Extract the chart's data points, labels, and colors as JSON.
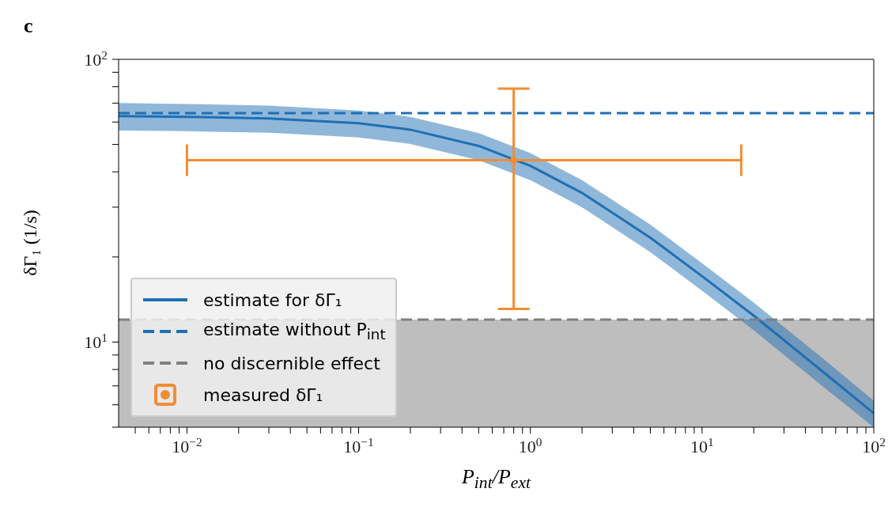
{
  "chart_data": {
    "type": "line",
    "title": "c",
    "xlabel": "P$_{int}$/P$_{ext}$",
    "ylabel": "δΓ₁ (1/s)",
    "log": "xy",
    "xlim": [
      0.004,
      100
    ],
    "ylim": [
      5,
      100
    ],
    "xticks": [
      {
        "value": 0.005,
        "label": null
      },
      {
        "value": 0.006,
        "label": null
      },
      {
        "value": 0.007,
        "label": null
      },
      {
        "value": 0.008,
        "label": null
      },
      {
        "value": 0.009,
        "label": null
      },
      {
        "value": 0.01,
        "label": "10$^{−2}$"
      },
      {
        "value": 0.02,
        "label": null
      },
      {
        "value": 0.03,
        "label": null
      },
      {
        "value": 0.04,
        "label": null
      },
      {
        "value": 0.05,
        "label": null
      },
      {
        "value": 0.06,
        "label": null
      },
      {
        "value": 0.07,
        "label": null
      },
      {
        "value": 0.08,
        "label": null
      },
      {
        "value": 0.09,
        "label": null
      },
      {
        "value": 0.1,
        "label": "10$^{−1}$"
      },
      {
        "value": 0.2,
        "label": null
      },
      {
        "value": 0.3,
        "label": null
      },
      {
        "value": 0.4,
        "label": null
      },
      {
        "value": 0.5,
        "label": null
      },
      {
        "value": 0.6,
        "label": null
      },
      {
        "value": 0.7,
        "label": null
      },
      {
        "value": 0.8,
        "label": null
      },
      {
        "value": 0.9,
        "label": null
      },
      {
        "value": 1,
        "label": "10$^{0}$"
      },
      {
        "value": 2,
        "label": null
      },
      {
        "value": 3,
        "label": null
      },
      {
        "value": 4,
        "label": null
      },
      {
        "value": 5,
        "label": null
      },
      {
        "value": 6,
        "label": null
      },
      {
        "value": 7,
        "label": null
      },
      {
        "value": 8,
        "label": null
      },
      {
        "value": 9,
        "label": null
      },
      {
        "value": 10,
        "label": "10$^{1}$"
      },
      {
        "value": 20,
        "label": null
      },
      {
        "value": 30,
        "label": null
      },
      {
        "value": 40,
        "label": null
      },
      {
        "value": 50,
        "label": null
      },
      {
        "value": 60,
        "label": null
      },
      {
        "value": 70,
        "label": null
      },
      {
        "value": 80,
        "label": null
      },
      {
        "value": 90,
        "label": null
      },
      {
        "value": 100,
        "label": "10$^{2}$"
      }
    ],
    "yticks": [
      {
        "value": 5,
        "label": null
      },
      {
        "value": 6,
        "label": null
      },
      {
        "value": 7,
        "label": null
      },
      {
        "value": 8,
        "label": null
      },
      {
        "value": 9,
        "label": null
      },
      {
        "value": 10,
        "label": "10$^{1}$"
      },
      {
        "value": 20,
        "label": null
      },
      {
        "value": 30,
        "label": null
      },
      {
        "value": 40,
        "label": null
      },
      {
        "value": 50,
        "label": null
      },
      {
        "value": 60,
        "label": null
      },
      {
        "value": 70,
        "label": null
      },
      {
        "value": 80,
        "label": null
      },
      {
        "value": 90,
        "label": null
      },
      {
        "value": 100,
        "label": "10$^{2}$"
      }
    ],
    "legend": "bottom left",
    "bands": [
      {
        "axis": "y",
        "from": 5,
        "to": 12,
        "color": "#bebebe"
      }
    ],
    "series": [
      {
        "name": "estimate for δΓ₁",
        "color": "#1f6fb4",
        "line_style": "solid",
        "x": [
          0.004,
          0.01,
          0.03,
          0.1,
          0.2,
          0.5,
          1,
          2,
          5,
          10,
          20,
          50,
          100
        ],
        "values": [
          63,
          62.6,
          61.8,
          59.4,
          56.4,
          49.4,
          42,
          33.7,
          23.4,
          17.1,
          12.4,
          7.9,
          5.6
        ],
        "lower": [
          56,
          55.7,
          55,
          52.9,
          50.2,
          44,
          37.4,
          30,
          20.8,
          15.2,
          11,
          7,
          5
        ],
        "upper": [
          70,
          69.5,
          68.6,
          65.9,
          62.6,
          54.8,
          46.6,
          37.4,
          26,
          19,
          13.8,
          8.8,
          6.2
        ]
      },
      {
        "name": "estimate without P$_{int}$",
        "color": "#1f6fb4",
        "line_style": "dashed",
        "x": [
          0.004,
          100
        ],
        "values": [
          64.5,
          64.5
        ]
      },
      {
        "name": "no discernible effect",
        "color": "#808080",
        "line_style": "dashed",
        "x": [
          0.004,
          100
        ],
        "values": [
          12,
          12
        ]
      },
      {
        "name": "measured δΓ₁",
        "type": "scatter",
        "color": "#f28c33",
        "x": [
          0.8
        ],
        "values": [
          44
        ],
        "errors": [
          [
            13.1,
            78.8
          ]
        ],
        "xerrors": [
          [
            0.01,
            16.9
          ]
        ]
      }
    ]
  }
}
